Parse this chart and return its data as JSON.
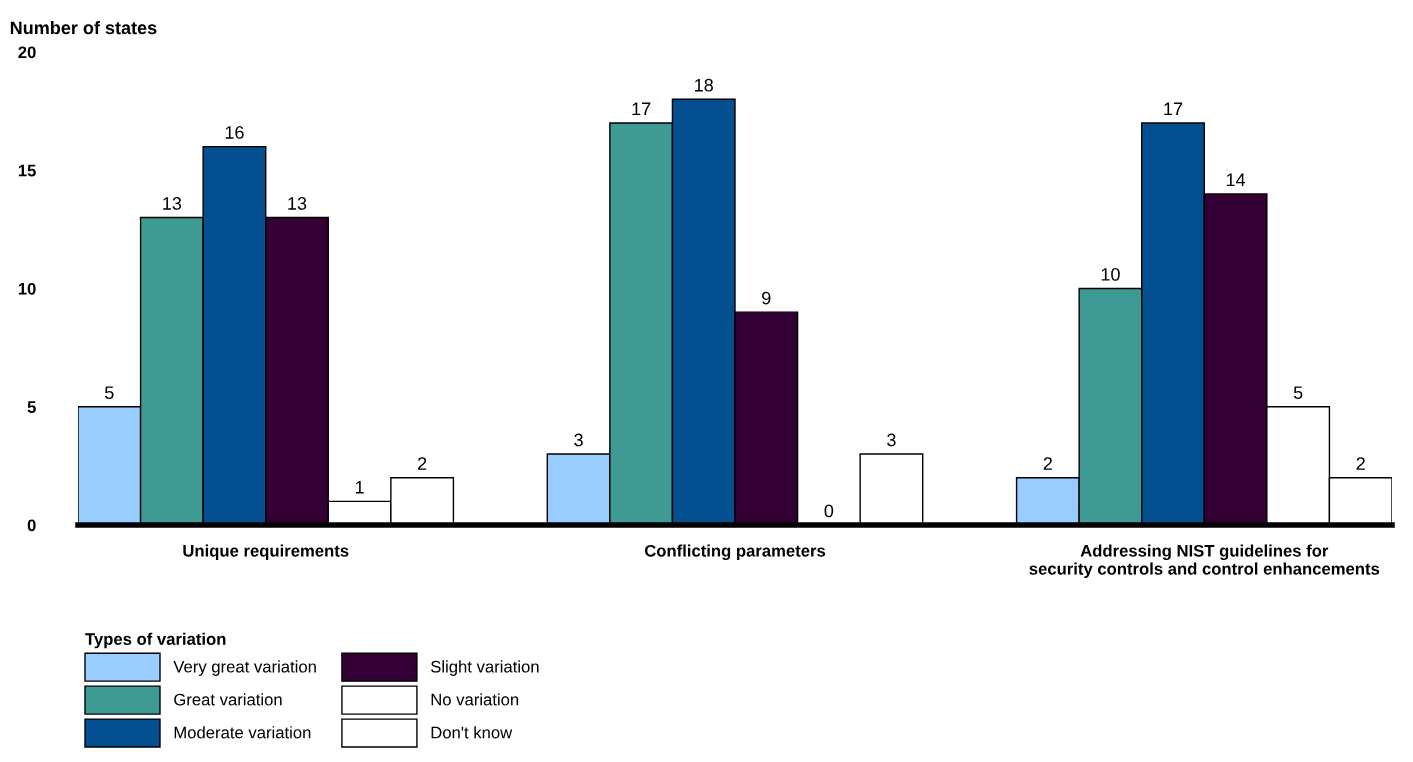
{
  "chart_data": {
    "type": "bar",
    "ylabel": "Number of states",
    "legend_title": "Types of variation",
    "categories": [
      "Unique requirements",
      "Conflicting parameters",
      "Addressing NIST guidelines for\nsecurity controls and control enhancements"
    ],
    "series": [
      {
        "name": "Very great variation",
        "color": "#99ccff",
        "values": [
          5,
          3,
          2
        ]
      },
      {
        "name": "Great variation",
        "color": "#3f9a93",
        "values": [
          13,
          17,
          10
        ]
      },
      {
        "name": "Moderate variation",
        "color": "#034f8f",
        "values": [
          16,
          18,
          17
        ]
      },
      {
        "name": "Slight variation",
        "color": "#330033",
        "values": [
          13,
          9,
          14
        ]
      },
      {
        "name": "No variation",
        "color": "#ffffff",
        "values": [
          1,
          0,
          5
        ]
      },
      {
        "name": "Don't know",
        "color": "#ffffff",
        "values": [
          2,
          3,
          2
        ]
      }
    ],
    "ylim": [
      0,
      20
    ],
    "yticks": [
      0,
      5,
      10,
      15,
      20
    ],
    "data_labels": true,
    "grid": false,
    "legend": "bottom left"
  }
}
